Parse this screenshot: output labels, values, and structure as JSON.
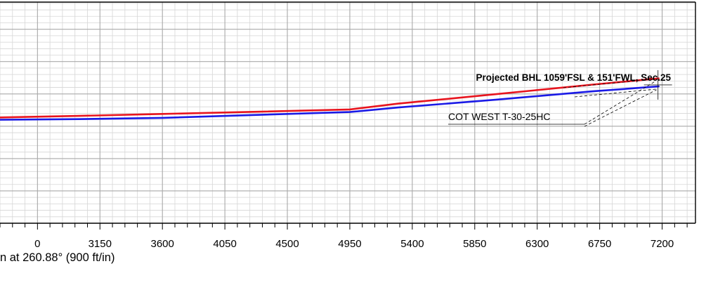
{
  "chart_data": {
    "type": "line",
    "title": "",
    "xlabel": "n at 260.88° (900 ft/in)",
    "ylabel": "",
    "xlim": [
      2430,
      7440
    ],
    "ylim": [
      -500,
      1210
    ],
    "x_major_step": 450,
    "x_minor_step": 90,
    "y_major_step": 250,
    "y_minor_step": 50,
    "x_tick_labels": [
      "0",
      "3150",
      "3600",
      "4050",
      "4500",
      "4950",
      "5400",
      "5850",
      "6300",
      "6750",
      "7200"
    ],
    "grid": true,
    "legend": "none",
    "series": [
      {
        "color": "#e8141e",
        "points": [
          [
            2430,
            318
          ],
          [
            3000,
            330
          ],
          [
            3600,
            345
          ],
          [
            4200,
            360
          ],
          [
            4950,
            380
          ],
          [
            5300,
            425
          ],
          [
            6000,
            498
          ],
          [
            6700,
            572
          ],
          [
            7175,
            620
          ]
        ]
      },
      {
        "color": "#1a1ae6",
        "points": [
          [
            2430,
            300
          ],
          [
            3000,
            305
          ],
          [
            3600,
            315
          ],
          [
            4200,
            335
          ],
          [
            4950,
            360
          ],
          [
            5300,
            395
          ],
          [
            6000,
            455
          ],
          [
            6700,
            520
          ],
          [
            7175,
            558
          ]
        ]
      }
    ],
    "target_marker": {
      "x": 7170,
      "y": 570
    },
    "annotations": [
      {
        "text": "Projected BHL 1059'FSL & 151'FWL, Sec.25",
        "bold": true
      },
      {
        "text": "COT WEST T-30-25HC",
        "bold": false
      }
    ]
  }
}
